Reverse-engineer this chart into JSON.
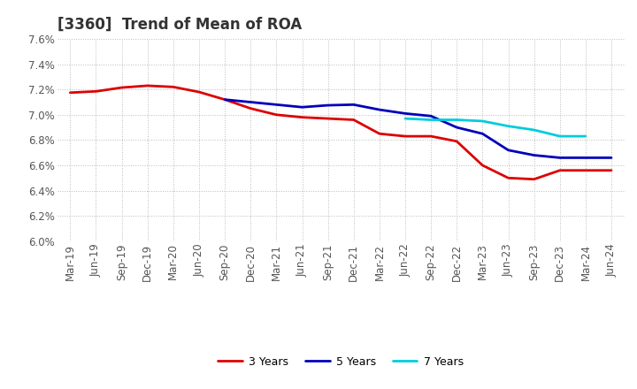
{
  "title": "[3360]  Trend of Mean of ROA",
  "ylim": [
    0.06,
    0.076
  ],
  "yticks": [
    0.06,
    0.062,
    0.064,
    0.066,
    0.068,
    0.07,
    0.072,
    0.074,
    0.076
  ],
  "x_labels": [
    "Mar-19",
    "Jun-19",
    "Sep-19",
    "Dec-19",
    "Mar-20",
    "Jun-20",
    "Sep-20",
    "Dec-20",
    "Mar-21",
    "Jun-21",
    "Sep-21",
    "Dec-21",
    "Mar-22",
    "Jun-22",
    "Sep-22",
    "Dec-22",
    "Mar-23",
    "Jun-23",
    "Sep-23",
    "Dec-23",
    "Mar-24",
    "Jun-24"
  ],
  "series_3y": [
    0.07175,
    0.07185,
    0.07215,
    0.0723,
    0.0722,
    0.0718,
    0.0712,
    0.0705,
    0.07,
    0.0698,
    0.0697,
    0.0696,
    0.0685,
    0.0683,
    0.0683,
    0.0679,
    0.066,
    0.065,
    0.0649,
    0.0656,
    0.0656,
    0.0656
  ],
  "series_5y": [
    null,
    null,
    null,
    null,
    null,
    null,
    0.0712,
    0.071,
    0.0708,
    0.0706,
    0.07075,
    0.0708,
    0.0704,
    0.0701,
    0.0699,
    0.069,
    0.0685,
    0.0672,
    0.0668,
    0.0666,
    0.0666,
    0.0666
  ],
  "series_7y": [
    null,
    null,
    null,
    null,
    null,
    null,
    null,
    null,
    null,
    null,
    null,
    null,
    null,
    0.0697,
    0.0696,
    0.0696,
    0.0695,
    0.0691,
    0.0688,
    0.0683,
    0.0683,
    null
  ],
  "series_10y": [
    null,
    null,
    null,
    null,
    null,
    null,
    null,
    null,
    null,
    null,
    null,
    null,
    null,
    null,
    null,
    null,
    null,
    null,
    null,
    null,
    null,
    null
  ],
  "color_3y": "#dd0000",
  "color_5y": "#0000bb",
  "color_7y": "#00ccdd",
  "color_10y": "#007700",
  "bg_color": "#ffffff",
  "grid_color": "#bbbbbb",
  "line_width": 2.0,
  "title_fontsize": 12,
  "tick_fontsize": 8.5,
  "legend_fontsize": 9
}
